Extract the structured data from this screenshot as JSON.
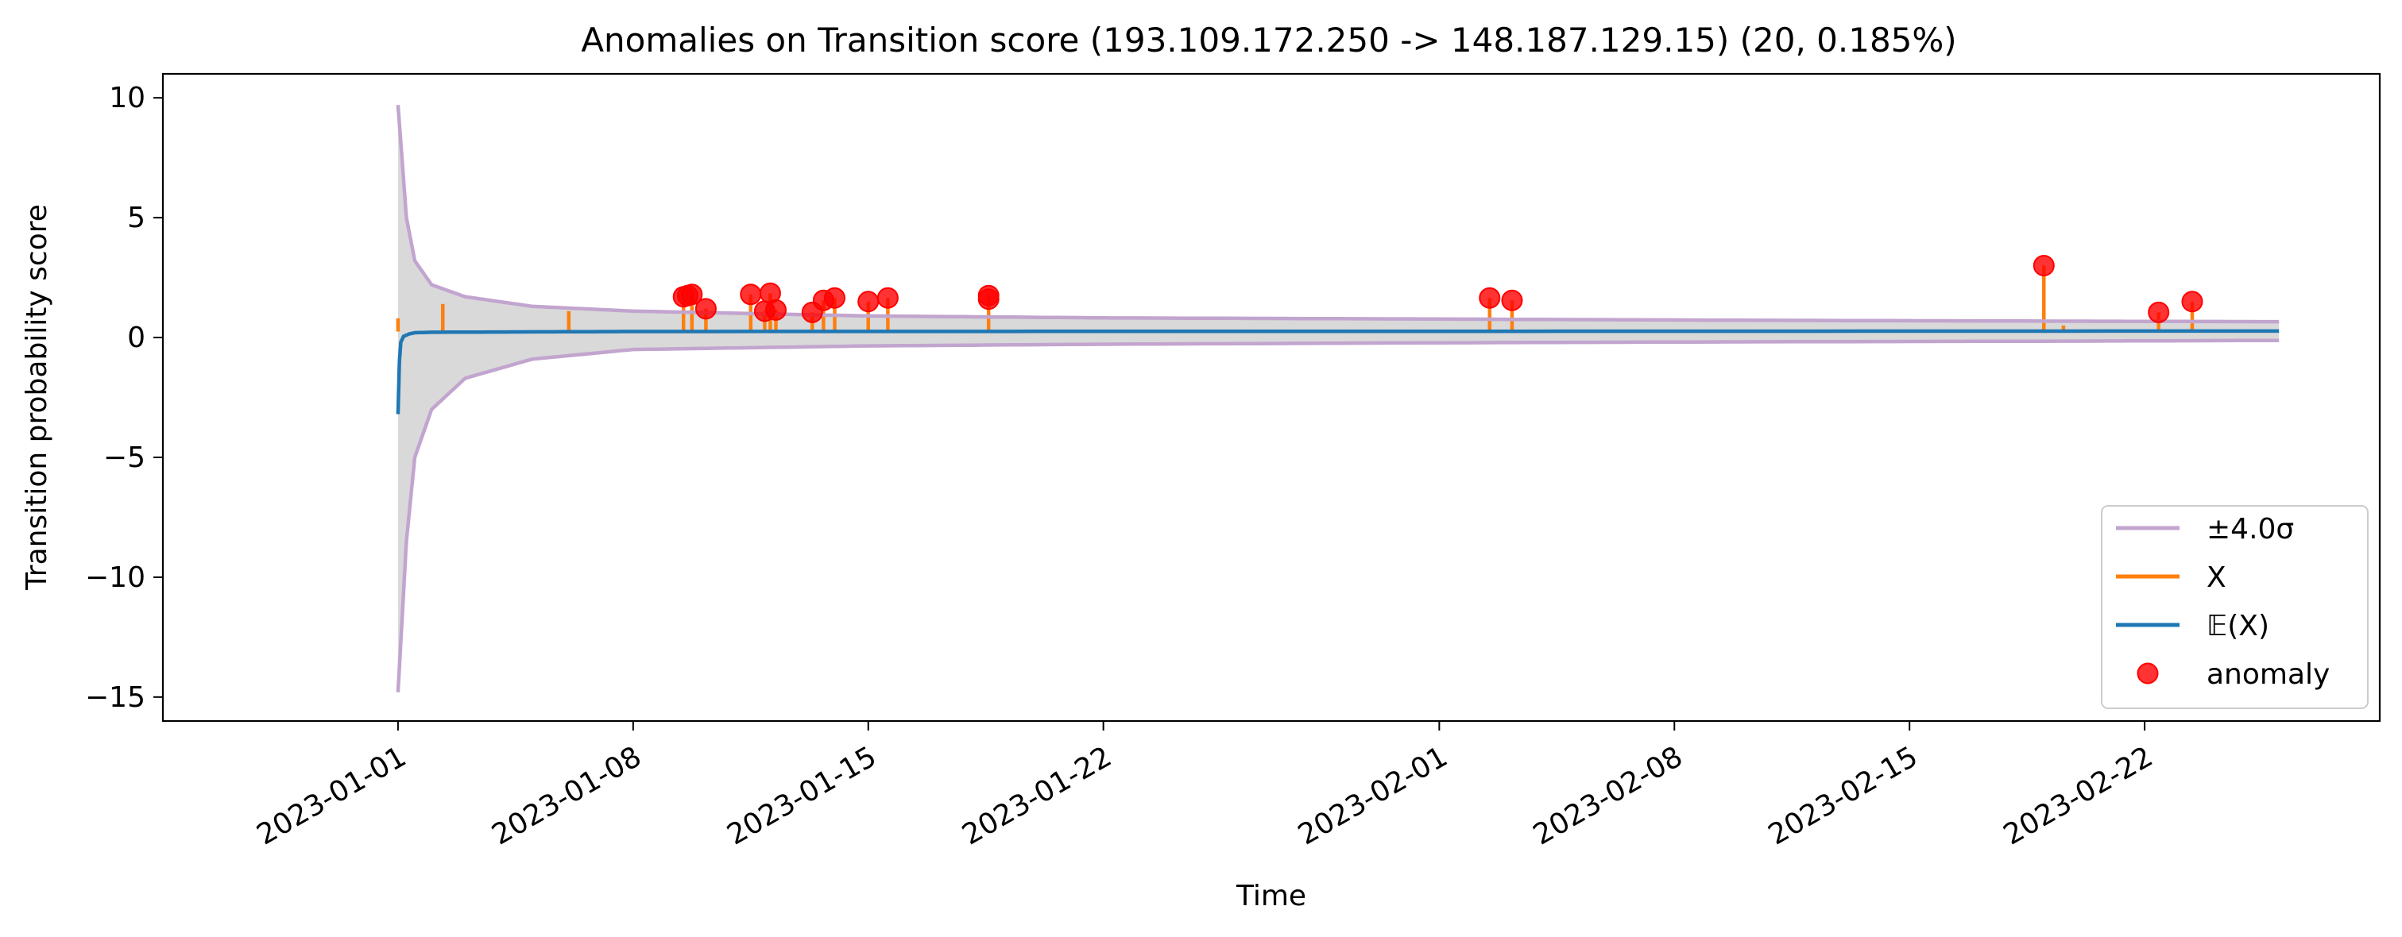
{
  "chart_data": {
    "type": "line",
    "title": "Anomalies on Transition score (193.109.172.250 -> 148.187.129.15) (20, 0.185%)",
    "xlabel": "Time",
    "ylabel": "Transition probability score",
    "x_axis_type": "date",
    "xlim": [
      "2022-12-25",
      "2023-03-01"
    ],
    "ylim": [
      -16,
      11
    ],
    "x_ticks": [
      "2023-01-01",
      "2023-01-08",
      "2023-01-15",
      "2023-01-22",
      "2023-02-01",
      "2023-02-08",
      "2023-02-15",
      "2023-02-22"
    ],
    "y_ticks": [
      10,
      5,
      0,
      -5,
      -10,
      -15
    ],
    "y_tick_labels": [
      "10",
      "5",
      "0",
      "−5",
      "−10",
      "−15"
    ],
    "grid": false,
    "legend": {
      "position": "lower-right",
      "entries": [
        {
          "label": "±4.0σ",
          "color": "#c2a5cf",
          "marker": "line"
        },
        {
          "label": "X",
          "color": "#ff7f0e",
          "marker": "line"
        },
        {
          "label": "𝔼(X)",
          "color": "#1f77b4",
          "marker": "line"
        },
        {
          "label": "anomaly",
          "color": "#ff0000",
          "marker": "dot"
        }
      ]
    },
    "series": [
      {
        "name": "±4.0σ",
        "color": "#c2a5cf",
        "upper": {
          "x": [
            "2023-01-01T00:00",
            "2023-01-01T06:00",
            "2023-01-01T12:00",
            "2023-01-02T00:00",
            "2023-01-03T00:00",
            "2023-01-05T00:00",
            "2023-01-08T00:00",
            "2023-01-15T00:00",
            "2023-01-22T00:00",
            "2023-02-01T00:00",
            "2023-02-10T00:00",
            "2023-02-20T00:00",
            "2023-02-26T00:00"
          ],
          "y": [
            9.7,
            5.0,
            3.2,
            2.2,
            1.7,
            1.3,
            1.1,
            0.9,
            0.82,
            0.77,
            0.72,
            0.68,
            0.66
          ]
        },
        "lower": {
          "x": [
            "2023-01-01T00:00",
            "2023-01-01T06:00",
            "2023-01-01T12:00",
            "2023-01-02T00:00",
            "2023-01-03T00:00",
            "2023-01-05T00:00",
            "2023-01-08T00:00",
            "2023-01-15T00:00",
            "2023-01-22T00:00",
            "2023-02-01T00:00",
            "2023-02-10T00:00",
            "2023-02-20T00:00",
            "2023-02-26T00:00"
          ],
          "y": [
            -14.8,
            -8.5,
            -5.0,
            -3.0,
            -1.7,
            -0.9,
            -0.5,
            -0.35,
            -0.28,
            -0.22,
            -0.18,
            -0.15,
            -0.12
          ]
        }
      },
      {
        "name": "X",
        "color": "#ff7f0e",
        "spikes": [
          {
            "x": "2023-01-01T00:00",
            "y": 0.8
          },
          {
            "x": "2023-01-02T08:00",
            "y": 1.4
          },
          {
            "x": "2023-01-06T02:00",
            "y": 1.1
          },
          {
            "x": "2023-01-09T12:00",
            "y": 1.7
          },
          {
            "x": "2023-01-09T18:00",
            "y": 1.8
          },
          {
            "x": "2023-01-10T04:00",
            "y": 1.2
          },
          {
            "x": "2023-01-11T12:00",
            "y": 1.8
          },
          {
            "x": "2023-01-11T22:00",
            "y": 1.1
          },
          {
            "x": "2023-01-12T02:00",
            "y": 1.85
          },
          {
            "x": "2023-01-12T06:00",
            "y": 1.15
          },
          {
            "x": "2023-01-13T08:00",
            "y": 1.05
          },
          {
            "x": "2023-01-13T16:00",
            "y": 1.55
          },
          {
            "x": "2023-01-14T00:00",
            "y": 1.65
          },
          {
            "x": "2023-01-15T00:00",
            "y": 1.5
          },
          {
            "x": "2023-01-15T14:00",
            "y": 1.65
          },
          {
            "x": "2023-01-18T14:00",
            "y": 1.75
          },
          {
            "x": "2023-02-02T12:00",
            "y": 1.65
          },
          {
            "x": "2023-02-03T04:00",
            "y": 1.55
          },
          {
            "x": "2023-02-19T00:00",
            "y": 3.0
          },
          {
            "x": "2023-02-19T14:00",
            "y": 0.5
          },
          {
            "x": "2023-02-22T10:00",
            "y": 1.05
          },
          {
            "x": "2023-02-23T10:00",
            "y": 1.5
          }
        ]
      },
      {
        "name": "𝔼(X)",
        "color": "#1f77b4",
        "x": [
          "2023-01-01T00:00",
          "2023-01-01T01:00",
          "2023-01-01T02:00",
          "2023-01-01T04:00",
          "2023-01-01T08:00",
          "2023-01-01T12:00",
          "2023-01-02T00:00",
          "2023-01-08T00:00",
          "2023-02-01T00:00",
          "2023-02-26T00:00"
        ],
        "y": [
          -3.2,
          -1.0,
          -0.2,
          0.05,
          0.15,
          0.2,
          0.22,
          0.25,
          0.26,
          0.27
        ]
      },
      {
        "name": "anomaly",
        "color": "#ff0000",
        "x": [
          "2023-01-09T12:00",
          "2023-01-09T18:00",
          "2023-01-10T04:00",
          "2023-01-11T12:00",
          "2023-01-11T22:00",
          "2023-01-12T02:00",
          "2023-01-12T06:00",
          "2023-01-13T08:00",
          "2023-01-13T16:00",
          "2023-01-14T00:00",
          "2023-01-15T00:00",
          "2023-01-15T14:00",
          "2023-01-18T14:00",
          "2023-01-18T14:00",
          "2023-02-02T12:00",
          "2023-02-03T04:00",
          "2023-02-19T00:00",
          "2023-02-22T10:00",
          "2023-02-23T10:00",
          "2023-01-09T15:00"
        ],
        "y": [
          1.7,
          1.8,
          1.2,
          1.8,
          1.1,
          1.85,
          1.15,
          1.05,
          1.55,
          1.65,
          1.5,
          1.65,
          1.75,
          1.6,
          1.65,
          1.55,
          3.0,
          1.05,
          1.5,
          1.75
        ]
      }
    ]
  }
}
